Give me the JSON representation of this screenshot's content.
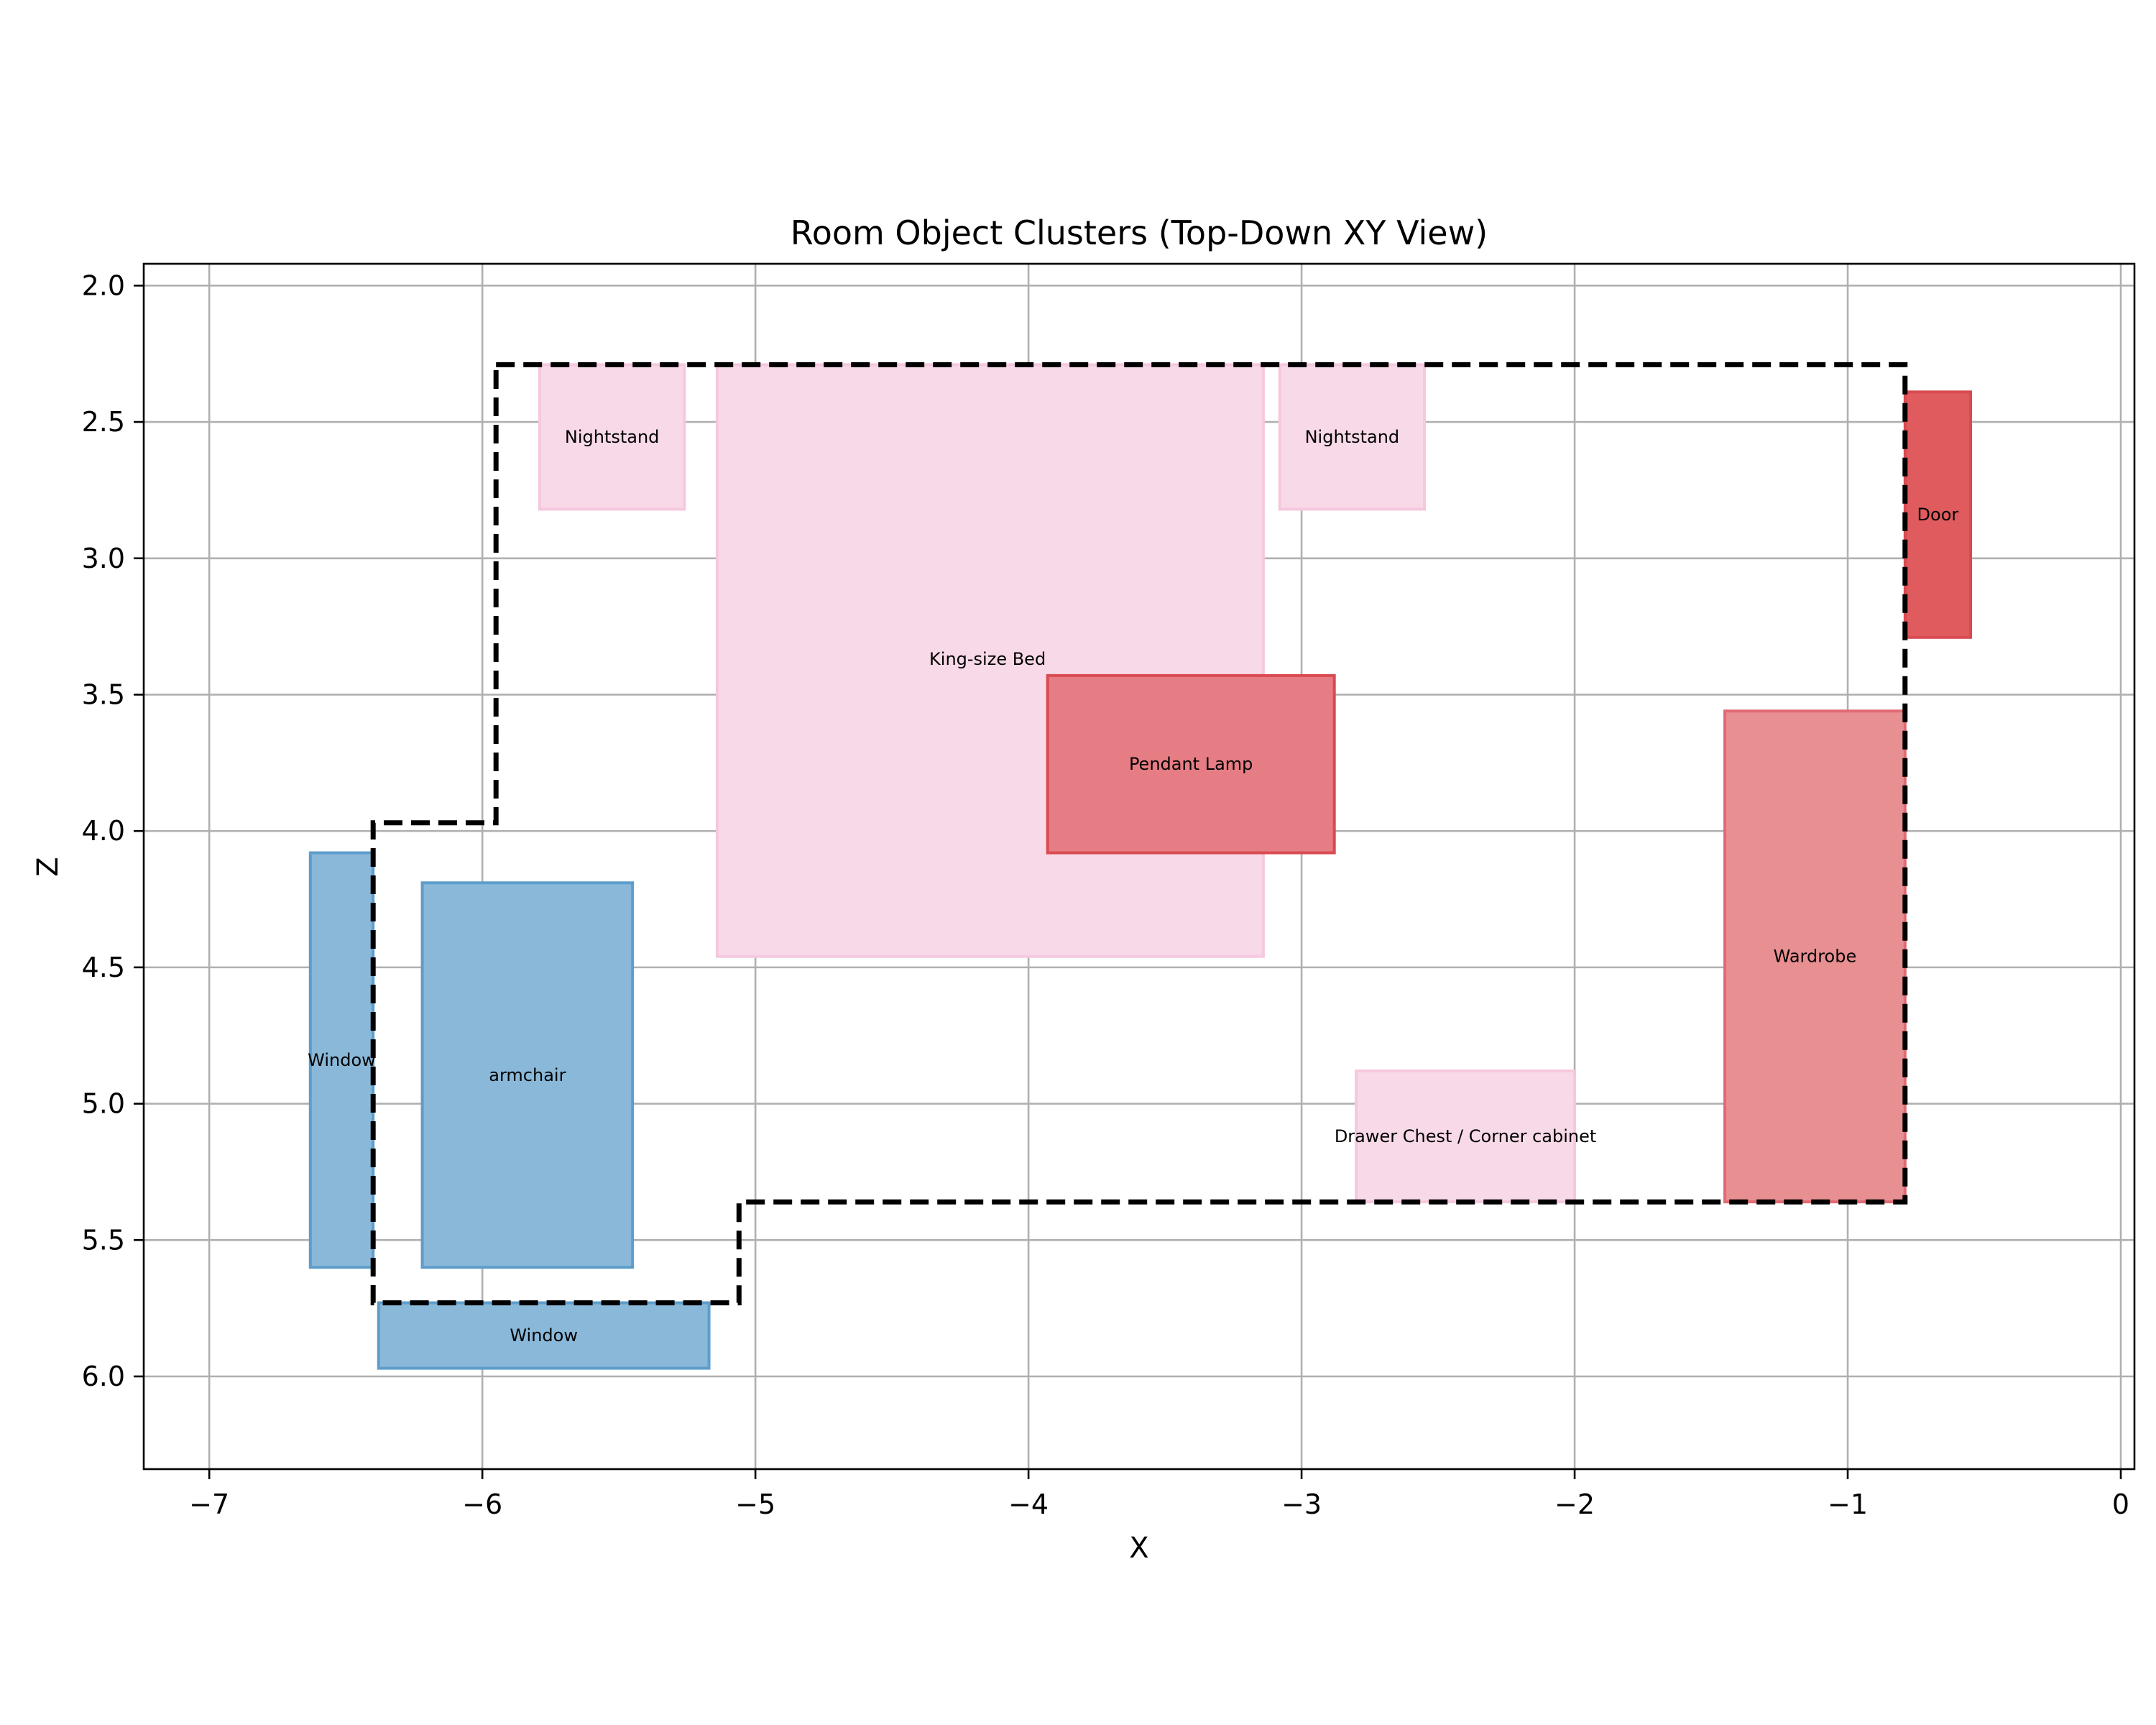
{
  "chart_data": {
    "type": "floorplan",
    "title": "Room Object Clusters (Top-Down XY View)",
    "xlabel": "X",
    "ylabel": "Z",
    "xlim": [
      -7.24,
      0.05
    ],
    "ylim": [
      6.34,
      1.92
    ],
    "y_inverted": true,
    "grid": true,
    "xticks": [
      -7,
      -6,
      -5,
      -4,
      -3,
      -2,
      -1,
      0
    ],
    "xtick_labels": [
      "−7",
      "−6",
      "−5",
      "−4",
      "−3",
      "−2",
      "−1",
      "0"
    ],
    "yticks": [
      2.0,
      2.5,
      3.0,
      3.5,
      4.0,
      4.5,
      5.0,
      5.5,
      6.0
    ],
    "ytick_labels": [
      "2.0",
      "2.5",
      "3.0",
      "3.5",
      "4.0",
      "4.5",
      "5.0",
      "5.5",
      "6.0"
    ],
    "colors": {
      "blue": "#8ab8d9",
      "blue_edge": "#5e9dcb",
      "pink": "#f8d9e8",
      "pink_edge": "#f5c8dd",
      "red_light": "#e88f91",
      "red_mid": "#e77d84",
      "red_dark": "#df5b5e",
      "red_edge": "#d94a51"
    },
    "boundary": [
      [
        -5.95,
        2.29
      ],
      [
        -0.79,
        2.29
      ],
      [
        -0.79,
        5.36
      ],
      [
        -5.06,
        5.36
      ],
      [
        -5.06,
        5.73
      ],
      [
        -6.4,
        5.73
      ],
      [
        -6.4,
        3.97
      ],
      [
        -5.95,
        3.97
      ]
    ],
    "objects": [
      {
        "label": "Nightstand",
        "x0": -5.79,
        "x1": -5.26,
        "z0": 2.29,
        "z1": 2.82,
        "fill": "#f8d9e8",
        "edge": "#f5c8dd"
      },
      {
        "label": "King-size Bed",
        "x0": -5.14,
        "x1": -3.14,
        "z0": 2.29,
        "z1": 4.46,
        "fill": "#f8d9e8",
        "edge": "#f5c8dd",
        "label_x": -4.15,
        "label_z": 3.37
      },
      {
        "label": "Nightstand",
        "x0": -3.08,
        "x1": -2.55,
        "z0": 2.29,
        "z1": 2.82,
        "fill": "#f8d9e8",
        "edge": "#f5c8dd"
      },
      {
        "label": "Door",
        "x0": -0.79,
        "x1": -0.55,
        "z0": 2.39,
        "z1": 3.29,
        "fill": "#df5b5e",
        "edge": "#d94a51"
      },
      {
        "label": "Pendant Lamp",
        "x0": -3.93,
        "x1": -2.88,
        "z0": 3.43,
        "z1": 4.08,
        "fill": "#e77d84",
        "edge": "#d94a51"
      },
      {
        "label": "Wardrobe",
        "x0": -1.45,
        "x1": -0.79,
        "z0": 3.56,
        "z1": 5.36,
        "fill": "#e88f91",
        "edge": "#e06b73"
      },
      {
        "label": "Window",
        "x0": -6.63,
        "x1": -6.4,
        "z0": 4.08,
        "z1": 5.6,
        "fill": "#8ab8d9",
        "edge": "#5e9dcb"
      },
      {
        "label": "armchair",
        "x0": -6.22,
        "x1": -5.45,
        "z0": 4.19,
        "z1": 5.6,
        "fill": "#8ab8d9",
        "edge": "#5e9dcb"
      },
      {
        "label": "Drawer Chest / Corner cabinet",
        "x0": -2.8,
        "x1": -2.0,
        "z0": 4.88,
        "z1": 5.36,
        "fill": "#f8d9e8",
        "edge": "#f5c8dd"
      },
      {
        "label": "Window",
        "x0": -6.38,
        "x1": -5.17,
        "z0": 5.73,
        "z1": 5.97,
        "fill": "#8ab8d9",
        "edge": "#5e9dcb"
      }
    ]
  }
}
